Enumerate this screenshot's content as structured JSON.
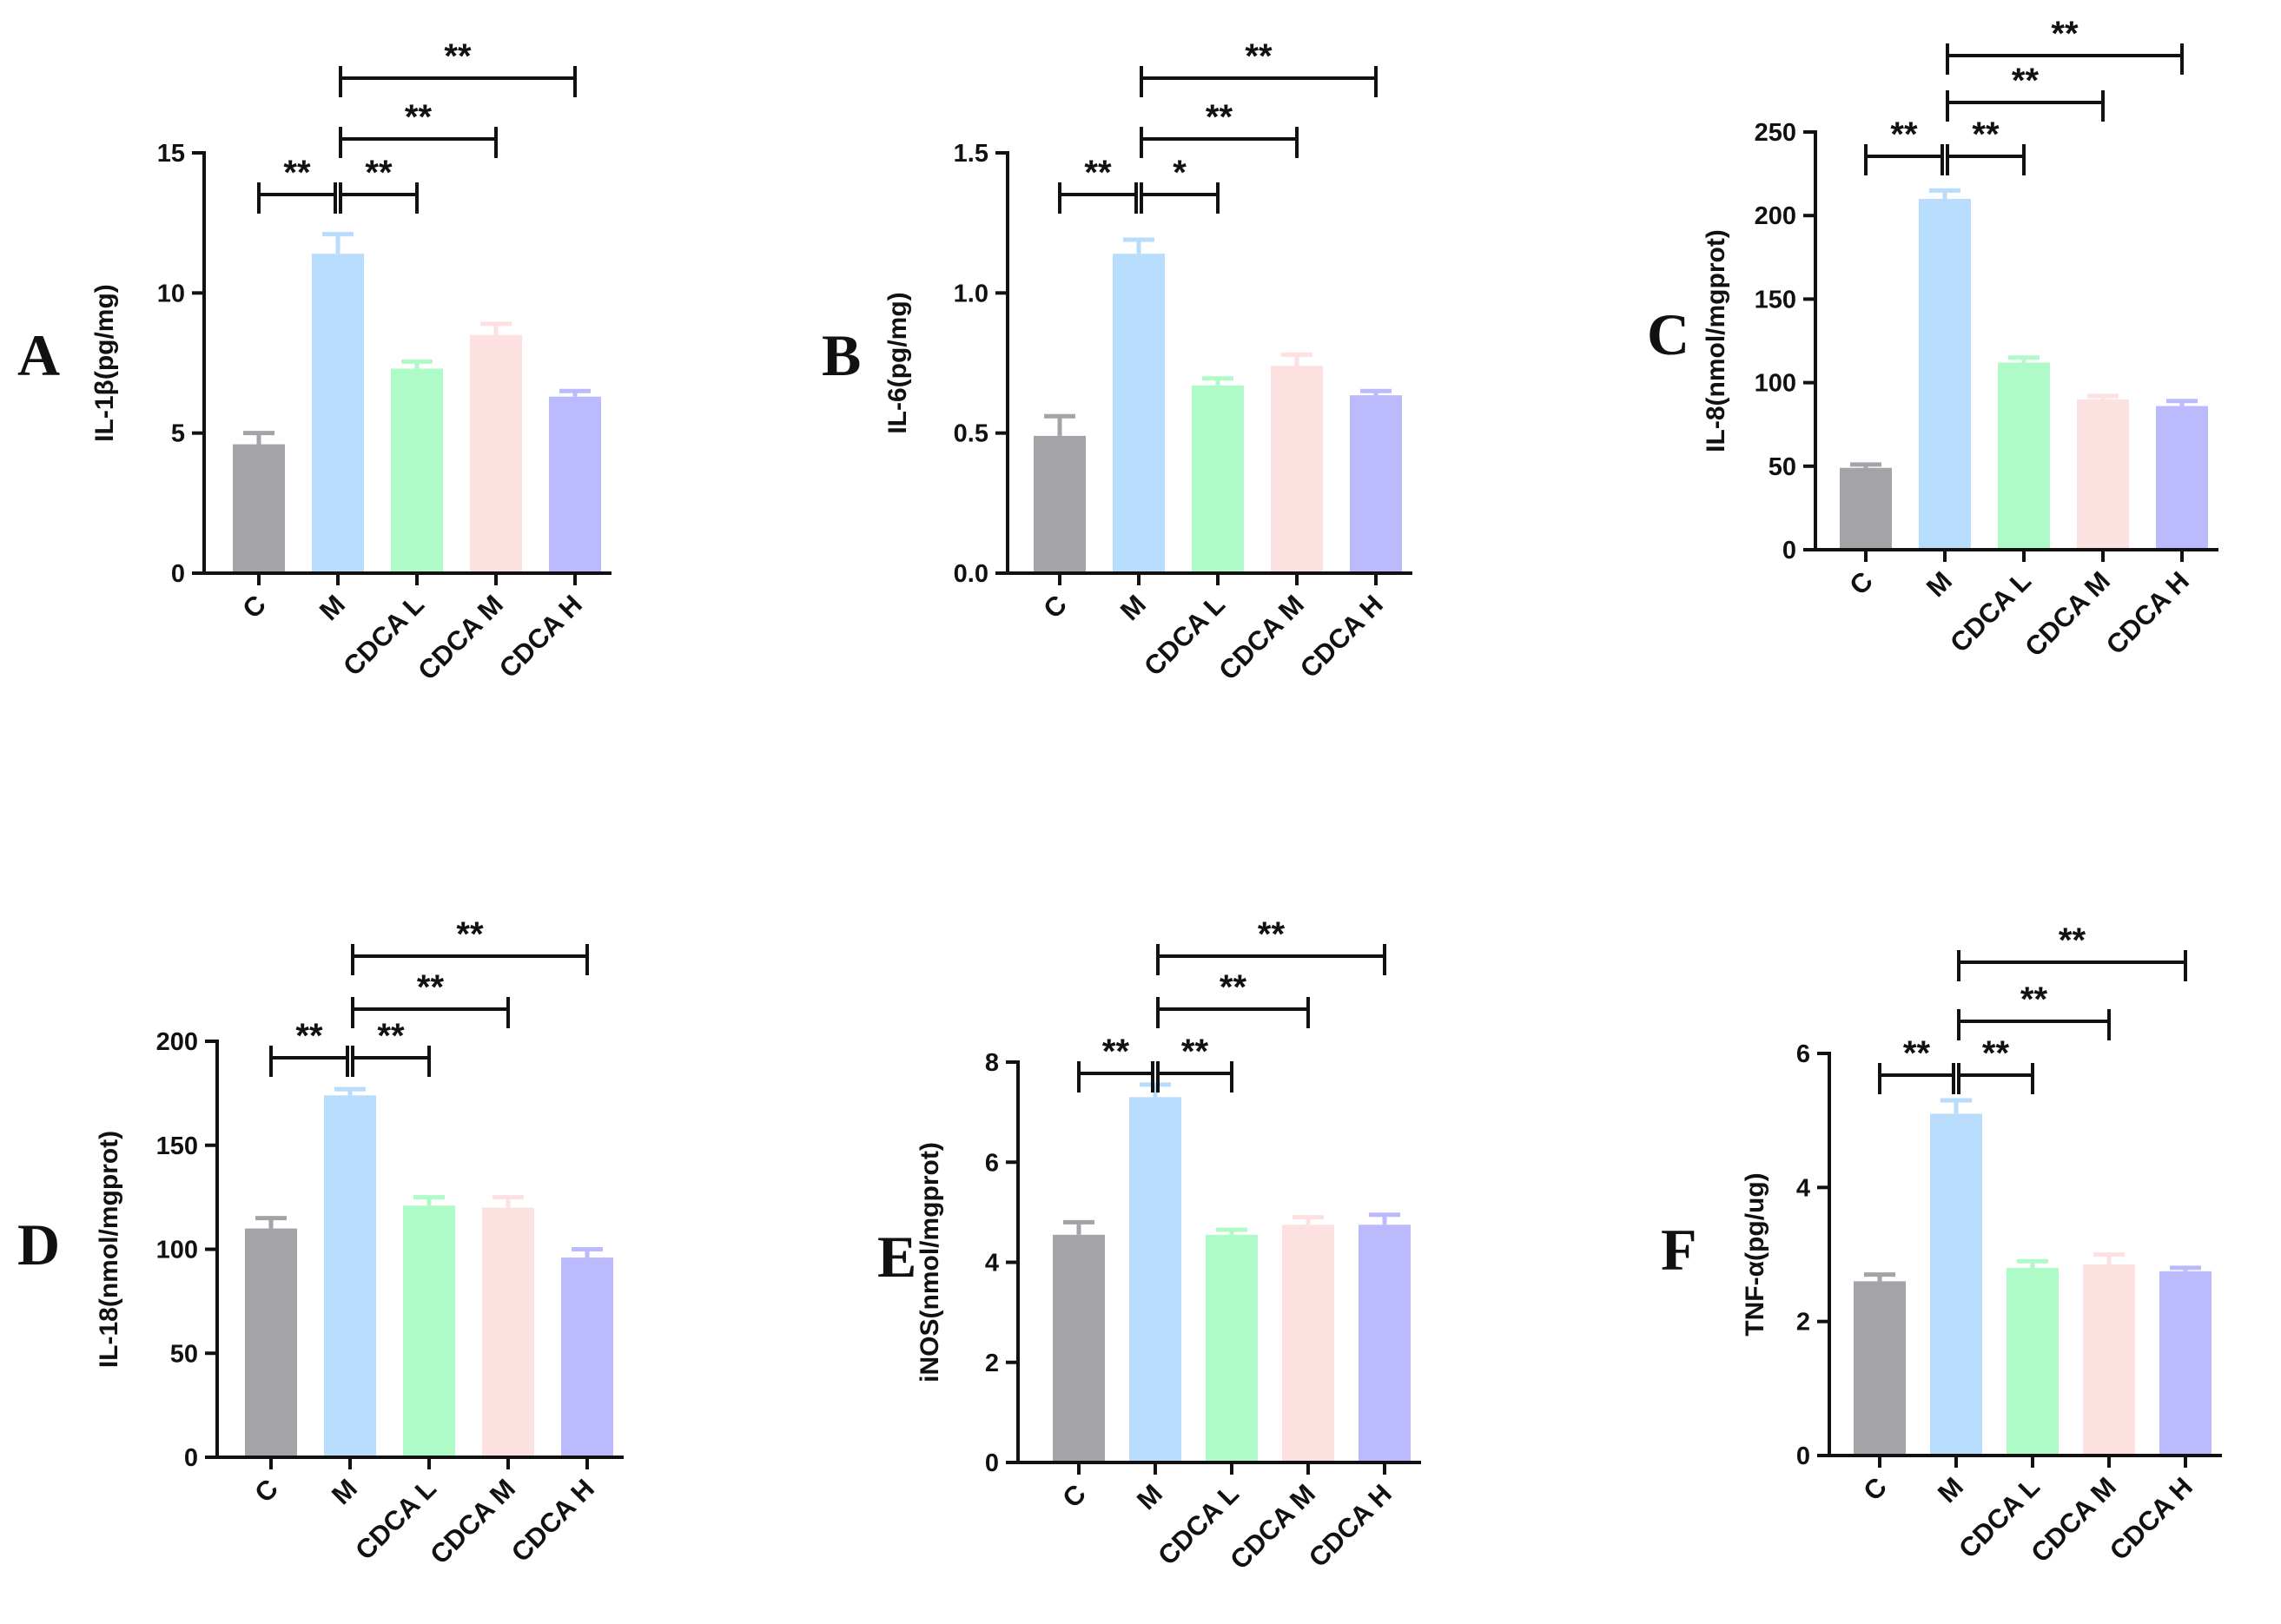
{
  "figure": {
    "bar_colors": [
      "#a3a3a8",
      "#b8dcfc",
      "#aefbc8",
      "#fde0e0",
      "#bbbafc"
    ]
  },
  "chart_data": [
    {
      "type": "bar",
      "panel": "A",
      "title": "",
      "xlabel": "",
      "ylabel": "IL-1β(pg/mg)",
      "ylim": [
        0,
        15
      ],
      "yticks": [
        0,
        5,
        10,
        15
      ],
      "categories": [
        "C",
        "M",
        "CDCA L",
        "CDCA M",
        "CDCA H"
      ],
      "values": [
        4.6,
        11.4,
        7.3,
        8.5,
        6.3
      ],
      "errors": [
        0.4,
        0.7,
        0.25,
        0.4,
        0.2
      ],
      "significance": [
        {
          "from": 0,
          "to": 1,
          "label": "**"
        },
        {
          "from": 1,
          "to": 2,
          "label": "**"
        },
        {
          "from": 1,
          "to": 3,
          "label": "**"
        },
        {
          "from": 1,
          "to": 4,
          "label": "**"
        }
      ]
    },
    {
      "type": "bar",
      "panel": "B",
      "title": "",
      "xlabel": "",
      "ylabel": "IL-6(pg/mg)",
      "ylim": [
        0,
        1.5
      ],
      "yticks": [
        "0.0",
        "0.5",
        "1.0",
        "1.5"
      ],
      "categories": [
        "C",
        "M",
        "CDCA L",
        "CDCA M",
        "CDCA H"
      ],
      "values": [
        0.49,
        1.14,
        0.67,
        0.74,
        0.635
      ],
      "errors": [
        0.07,
        0.05,
        0.025,
        0.04,
        0.015
      ],
      "significance": [
        {
          "from": 0,
          "to": 1,
          "label": "**"
        },
        {
          "from": 1,
          "to": 2,
          "label": "*"
        },
        {
          "from": 1,
          "to": 3,
          "label": "**"
        },
        {
          "from": 1,
          "to": 4,
          "label": "**"
        }
      ]
    },
    {
      "type": "bar",
      "panel": "C",
      "title": "",
      "xlabel": "",
      "ylabel": "IL-8(nmol/mgprot)",
      "ylim": [
        0,
        250
      ],
      "yticks": [
        0,
        50,
        100,
        150,
        200,
        250
      ],
      "categories": [
        "C",
        "M",
        "CDCA L",
        "CDCA M",
        "CDCA H"
      ],
      "values": [
        49,
        210,
        112,
        90,
        86
      ],
      "errors": [
        2,
        5,
        3,
        2,
        3
      ],
      "significance": [
        {
          "from": 0,
          "to": 1,
          "label": "**"
        },
        {
          "from": 1,
          "to": 2,
          "label": "**"
        },
        {
          "from": 1,
          "to": 3,
          "label": "**"
        },
        {
          "from": 1,
          "to": 4,
          "label": "**"
        }
      ]
    },
    {
      "type": "bar",
      "panel": "D",
      "title": "",
      "xlabel": "",
      "ylabel": "IL-18(nmol/mgprot)",
      "ylim": [
        0,
        200
      ],
      "yticks": [
        0,
        50,
        100,
        150,
        200
      ],
      "categories": [
        "C",
        "M",
        "CDCA L",
        "CDCA M",
        "CDCA H"
      ],
      "values": [
        110,
        174,
        121,
        120,
        96
      ],
      "errors": [
        5,
        3,
        4,
        5,
        4
      ],
      "significance": [
        {
          "from": 0,
          "to": 1,
          "label": "**"
        },
        {
          "from": 1,
          "to": 2,
          "label": "**"
        },
        {
          "from": 1,
          "to": 3,
          "label": "**"
        },
        {
          "from": 1,
          "to": 4,
          "label": "**"
        }
      ]
    },
    {
      "type": "bar",
      "panel": "E",
      "title": "",
      "xlabel": "",
      "ylabel": "iNOS(nmol/mgprot)",
      "ylim": [
        0,
        8
      ],
      "yticks": [
        0,
        2,
        4,
        6,
        8
      ],
      "categories": [
        "C",
        "M",
        "CDCA L",
        "CDCA M",
        "CDCA H"
      ],
      "values": [
        4.55,
        7.3,
        4.55,
        4.75,
        4.75
      ],
      "errors": [
        0.25,
        0.25,
        0.1,
        0.15,
        0.2
      ],
      "significance": [
        {
          "from": 0,
          "to": 1,
          "label": "**"
        },
        {
          "from": 1,
          "to": 2,
          "label": "**"
        },
        {
          "from": 1,
          "to": 3,
          "label": "**"
        },
        {
          "from": 1,
          "to": 4,
          "label": "**"
        }
      ]
    },
    {
      "type": "bar",
      "panel": "F",
      "title": "",
      "xlabel": "",
      "ylabel": "TNF-α(pg/ug)",
      "ylim": [
        0,
        6
      ],
      "yticks": [
        0,
        2,
        4,
        6
      ],
      "categories": [
        "C",
        "M",
        "CDCA L",
        "CDCA M",
        "CDCA H"
      ],
      "values": [
        2.6,
        5.1,
        2.8,
        2.85,
        2.75
      ],
      "errors": [
        0.1,
        0.2,
        0.1,
        0.15,
        0.05
      ],
      "significance": [
        {
          "from": 0,
          "to": 1,
          "label": "**"
        },
        {
          "from": 1,
          "to": 2,
          "label": "**"
        },
        {
          "from": 1,
          "to": 3,
          "label": "**"
        },
        {
          "from": 1,
          "to": 4,
          "label": "**"
        }
      ]
    }
  ]
}
